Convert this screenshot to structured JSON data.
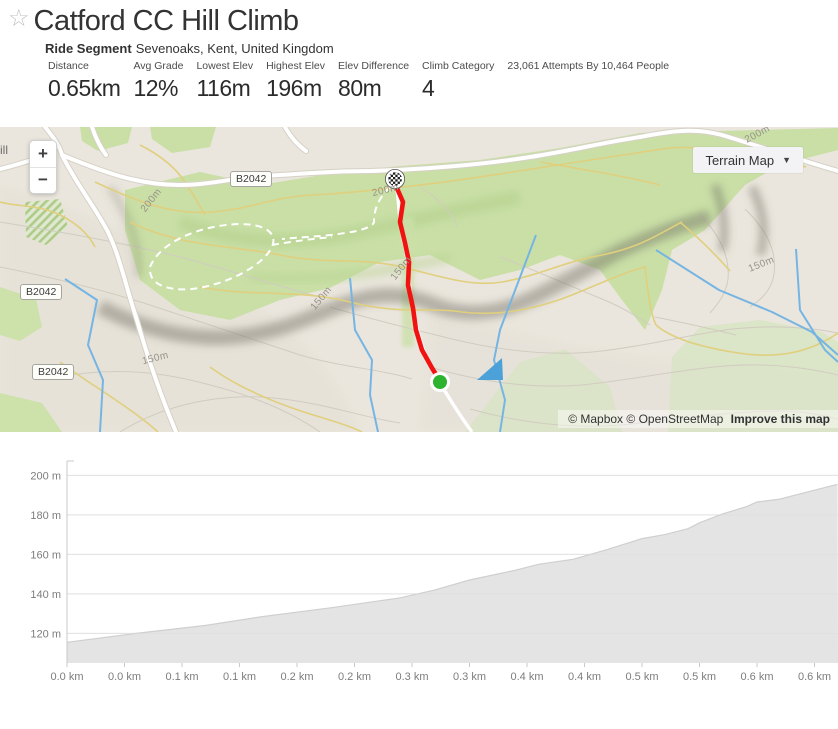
{
  "header": {
    "star_icon": "☆",
    "title": "Catford CC Hill Climb",
    "segment_type": "Ride Segment",
    "location": "Sevenoaks, Kent, United Kingdom",
    "stats": [
      {
        "label": "Distance",
        "value": "0.65km"
      },
      {
        "label": "Avg Grade",
        "value": "12%"
      },
      {
        "label": "Lowest Elev",
        "value": "116m"
      },
      {
        "label": "Highest Elev",
        "value": "196m"
      },
      {
        "label": "Elev Difference",
        "value": "80m"
      },
      {
        "label": "Climb Category",
        "value": "4"
      },
      {
        "label": "23,061 Attempts By 10,464 People",
        "value": ""
      }
    ]
  },
  "map": {
    "style_button_label": "Terrain Map",
    "style_button_caret": "▼",
    "zoom_in": "+",
    "zoom_out": "−",
    "cutoff_label": "ill",
    "road_labels": [
      "B2042",
      "B2042",
      "B2042"
    ],
    "contour_labels": [
      "200m",
      "200m",
      "200m",
      "150m",
      "150m",
      "150m",
      "150m"
    ],
    "attribution": {
      "mapbox": "© Mapbox",
      "osm": "© OpenStreetMap",
      "improve": "Improve this map"
    },
    "colors": {
      "route": "#f11212",
      "start_marker": "#2db32d",
      "green_area": "#c9dfa6",
      "water": "#76b5e3",
      "base": "#eae6dd"
    }
  },
  "chart_data": {
    "type": "area",
    "title": "",
    "xlabel": "",
    "ylabel": "",
    "xlim_km": [
      0,
      0.6705
    ],
    "ylim_m": [
      105,
      207
    ],
    "grid": true,
    "fill_color": "#e4e4e4",
    "edge_color": "#cfcfcf",
    "y_ticks_m": [
      200,
      180,
      160,
      140,
      120
    ],
    "y_tick_labels": [
      "200 m",
      "180 m",
      "160 m",
      "140 m",
      "120 m"
    ],
    "x_ticks_km": [
      0,
      0.05,
      0.1,
      0.15,
      0.2,
      0.25,
      0.3,
      0.35,
      0.4,
      0.45,
      0.5,
      0.55,
      0.6,
      0.65
    ],
    "x_tick_labels": [
      "0.0 km",
      "0.0 km",
      "0.1 km",
      "0.1 km",
      "0.2 km",
      "0.2 km",
      "0.3 km",
      "0.3 km",
      "0.4 km",
      "0.4 km",
      "0.5 km",
      "0.5 km",
      "0.6 km",
      "0.6 km"
    ],
    "profile": {
      "km": [
        0.0,
        0.06,
        0.12,
        0.17,
        0.23,
        0.29,
        0.32,
        0.35,
        0.39,
        0.41,
        0.44,
        0.47,
        0.5,
        0.52,
        0.54,
        0.55,
        0.57,
        0.59,
        0.6,
        0.62,
        0.63,
        0.65,
        0.67
      ],
      "elev_m": [
        115.5,
        120,
        124,
        128.5,
        133,
        138,
        142,
        147,
        152,
        155,
        157.5,
        162.5,
        168,
        170,
        173,
        176,
        180.5,
        184,
        186.5,
        188,
        189.5,
        192.5,
        195.5
      ]
    }
  }
}
